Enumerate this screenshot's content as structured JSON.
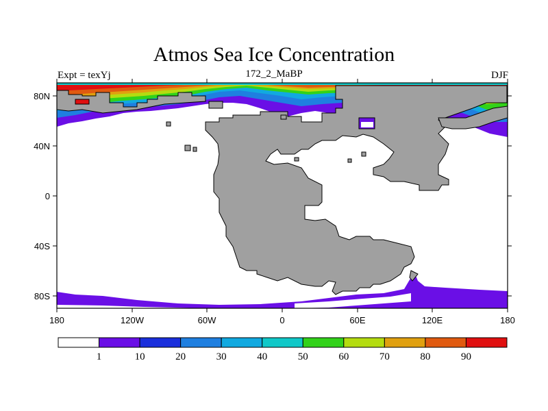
{
  "title": "Atmos Sea Ice Concentration",
  "left_subtitle": "Expt = texYj",
  "center_subtitle": "172_2_MaBP",
  "right_subtitle": "DJF",
  "colors": {
    "land": "#a0a0a0",
    "ocean": "#ffffff",
    "bins": [
      "#ffffff",
      "#6a0fe6",
      "#1a2fdc",
      "#1f7fe0",
      "#11a9e0",
      "#10c8c8",
      "#32d21a",
      "#b4dc10",
      "#e0a010",
      "#e05a10",
      "#e01010"
    ]
  },
  "chart_data": {
    "type": "heatmap",
    "title": "Atmos Sea Ice Concentration",
    "x_ticks": [
      "180",
      "120W",
      "60W",
      "0",
      "60E",
      "120E",
      "180"
    ],
    "y_ticks": [
      "80N",
      "40N",
      "0",
      "40S",
      "80S"
    ],
    "colorbar_labels": [
      "1",
      "10",
      "20",
      "30",
      "40",
      "50",
      "60",
      "70",
      "80",
      "90"
    ],
    "levels": [
      1,
      10,
      20,
      30,
      40,
      50,
      60,
      70,
      80,
      90
    ]
  }
}
